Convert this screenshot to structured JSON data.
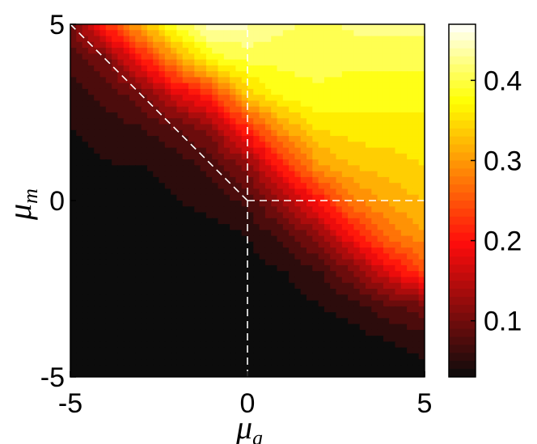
{
  "chart_data": {
    "type": "heatmap",
    "title": "",
    "xlabel": {
      "base": "μ",
      "sub": "a"
    },
    "ylabel": {
      "base": "μ",
      "sub": "m"
    },
    "xlim": [
      -5,
      5
    ],
    "ylim": [
      -5,
      5
    ],
    "x_ticks": [
      "-5",
      "0",
      "5"
    ],
    "y_ticks": [
      "-5",
      "0",
      "5"
    ],
    "colorbar": {
      "range": [
        0.03,
        0.47
      ],
      "ticks": [
        "0.1",
        "0.2",
        "0.3",
        "0.4"
      ],
      "colormap": "hot"
    },
    "field": {
      "x": [
        -5,
        -4,
        -3,
        -2,
        -1,
        0,
        1,
        2,
        3,
        4,
        5
      ],
      "y": [
        5,
        4,
        3,
        2,
        1,
        0,
        -1,
        -2,
        -3,
        -4,
        -5
      ],
      "values": [
        [
          0.1,
          0.22,
          0.32,
          0.4,
          0.45,
          0.44,
          0.42,
          0.41,
          0.42,
          0.42,
          0.42
        ],
        [
          0.07,
          0.1,
          0.2,
          0.3,
          0.38,
          0.4,
          0.4,
          0.4,
          0.4,
          0.4,
          0.4
        ],
        [
          0.05,
          0.07,
          0.1,
          0.17,
          0.22,
          0.34,
          0.38,
          0.39,
          0.38,
          0.38,
          0.38
        ],
        [
          0.04,
          0.05,
          0.06,
          0.08,
          0.12,
          0.21,
          0.3,
          0.35,
          0.36,
          0.36,
          0.36
        ],
        [
          0.03,
          0.04,
          0.04,
          0.05,
          0.07,
          0.12,
          0.21,
          0.3,
          0.33,
          0.34,
          0.35
        ],
        [
          0.03,
          0.03,
          0.03,
          0.04,
          0.05,
          0.07,
          0.13,
          0.2,
          0.28,
          0.31,
          0.33
        ],
        [
          0.03,
          0.03,
          0.03,
          0.03,
          0.03,
          0.04,
          0.07,
          0.12,
          0.2,
          0.27,
          0.3
        ],
        [
          0.03,
          0.03,
          0.03,
          0.03,
          0.03,
          0.03,
          0.04,
          0.06,
          0.11,
          0.18,
          0.24
        ],
        [
          0.03,
          0.03,
          0.03,
          0.03,
          0.03,
          0.03,
          0.03,
          0.04,
          0.05,
          0.08,
          0.1
        ],
        [
          0.03,
          0.03,
          0.03,
          0.03,
          0.03,
          0.03,
          0.03,
          0.03,
          0.03,
          0.04,
          0.05
        ],
        [
          0.03,
          0.03,
          0.03,
          0.03,
          0.03,
          0.03,
          0.03,
          0.03,
          0.03,
          0.03,
          0.03
        ]
      ]
    },
    "reference_lines": [
      {
        "name": "diagonal",
        "from": [
          -5,
          5
        ],
        "to": [
          0,
          0
        ]
      },
      {
        "name": "vertical",
        "from": [
          0,
          -5
        ],
        "to": [
          0,
          5
        ]
      },
      {
        "name": "horizontal",
        "from": [
          0,
          0
        ],
        "to": [
          5,
          0
        ]
      }
    ],
    "grid": false
  }
}
